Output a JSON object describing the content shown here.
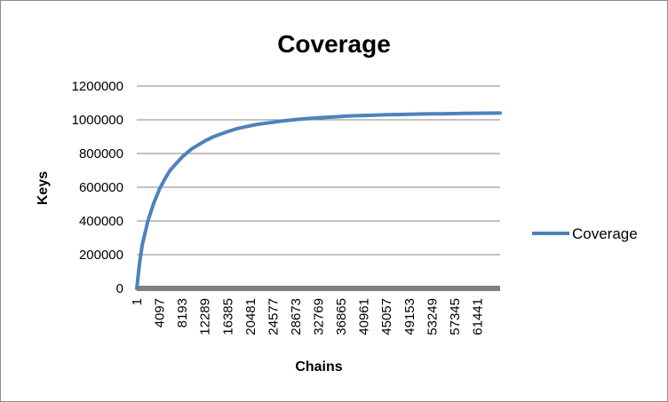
{
  "chart_data": {
    "type": "line",
    "title": "Coverage",
    "xlabel": "Chains",
    "ylabel": "Keys",
    "ylim": [
      0,
      1200000
    ],
    "yticks": [
      0,
      200000,
      400000,
      600000,
      800000,
      1000000,
      1200000
    ],
    "ytick_labels": [
      "0",
      "200000",
      "400000",
      "600000",
      "800000",
      "1000000",
      "1200000"
    ],
    "xlim": [
      1,
      65536
    ],
    "xtick_labels": [
      "1",
      "4097",
      "8193",
      "12289",
      "16385",
      "20481",
      "24577",
      "28673",
      "32769",
      "36865",
      "40961",
      "45057",
      "49153",
      "53249",
      "57345",
      "61441"
    ],
    "grid": "horizontal",
    "legend_position": "right",
    "colors": {
      "series": "#4f81bd",
      "x_axis": "#808080",
      "grid": "#868686"
    },
    "series": [
      {
        "name": "Coverage",
        "x": [
          1,
          500,
          1000,
          2000,
          3000,
          4097,
          5000,
          6000,
          8193,
          10000,
          12289,
          14000,
          16385,
          18000,
          20481,
          22000,
          24577,
          26000,
          28673,
          30000,
          32769,
          34000,
          36865,
          38000,
          40961,
          43000,
          45057,
          47000,
          49153,
          51000,
          53249,
          55000,
          57345,
          59000,
          61441,
          63000,
          65536
        ],
        "y": [
          0,
          150000,
          260000,
          400000,
          500000,
          590000,
          645000,
          700000,
          780000,
          830000,
          875000,
          902000,
          930000,
          947000,
          965000,
          974000,
          985000,
          992000,
          1001000,
          1005000,
          1012000,
          1015000,
          1020000,
          1022000,
          1026000,
          1028000,
          1030000,
          1031000,
          1033000,
          1034000,
          1035000,
          1036000,
          1037000,
          1038000,
          1039000,
          1039500,
          1040000
        ]
      }
    ]
  }
}
